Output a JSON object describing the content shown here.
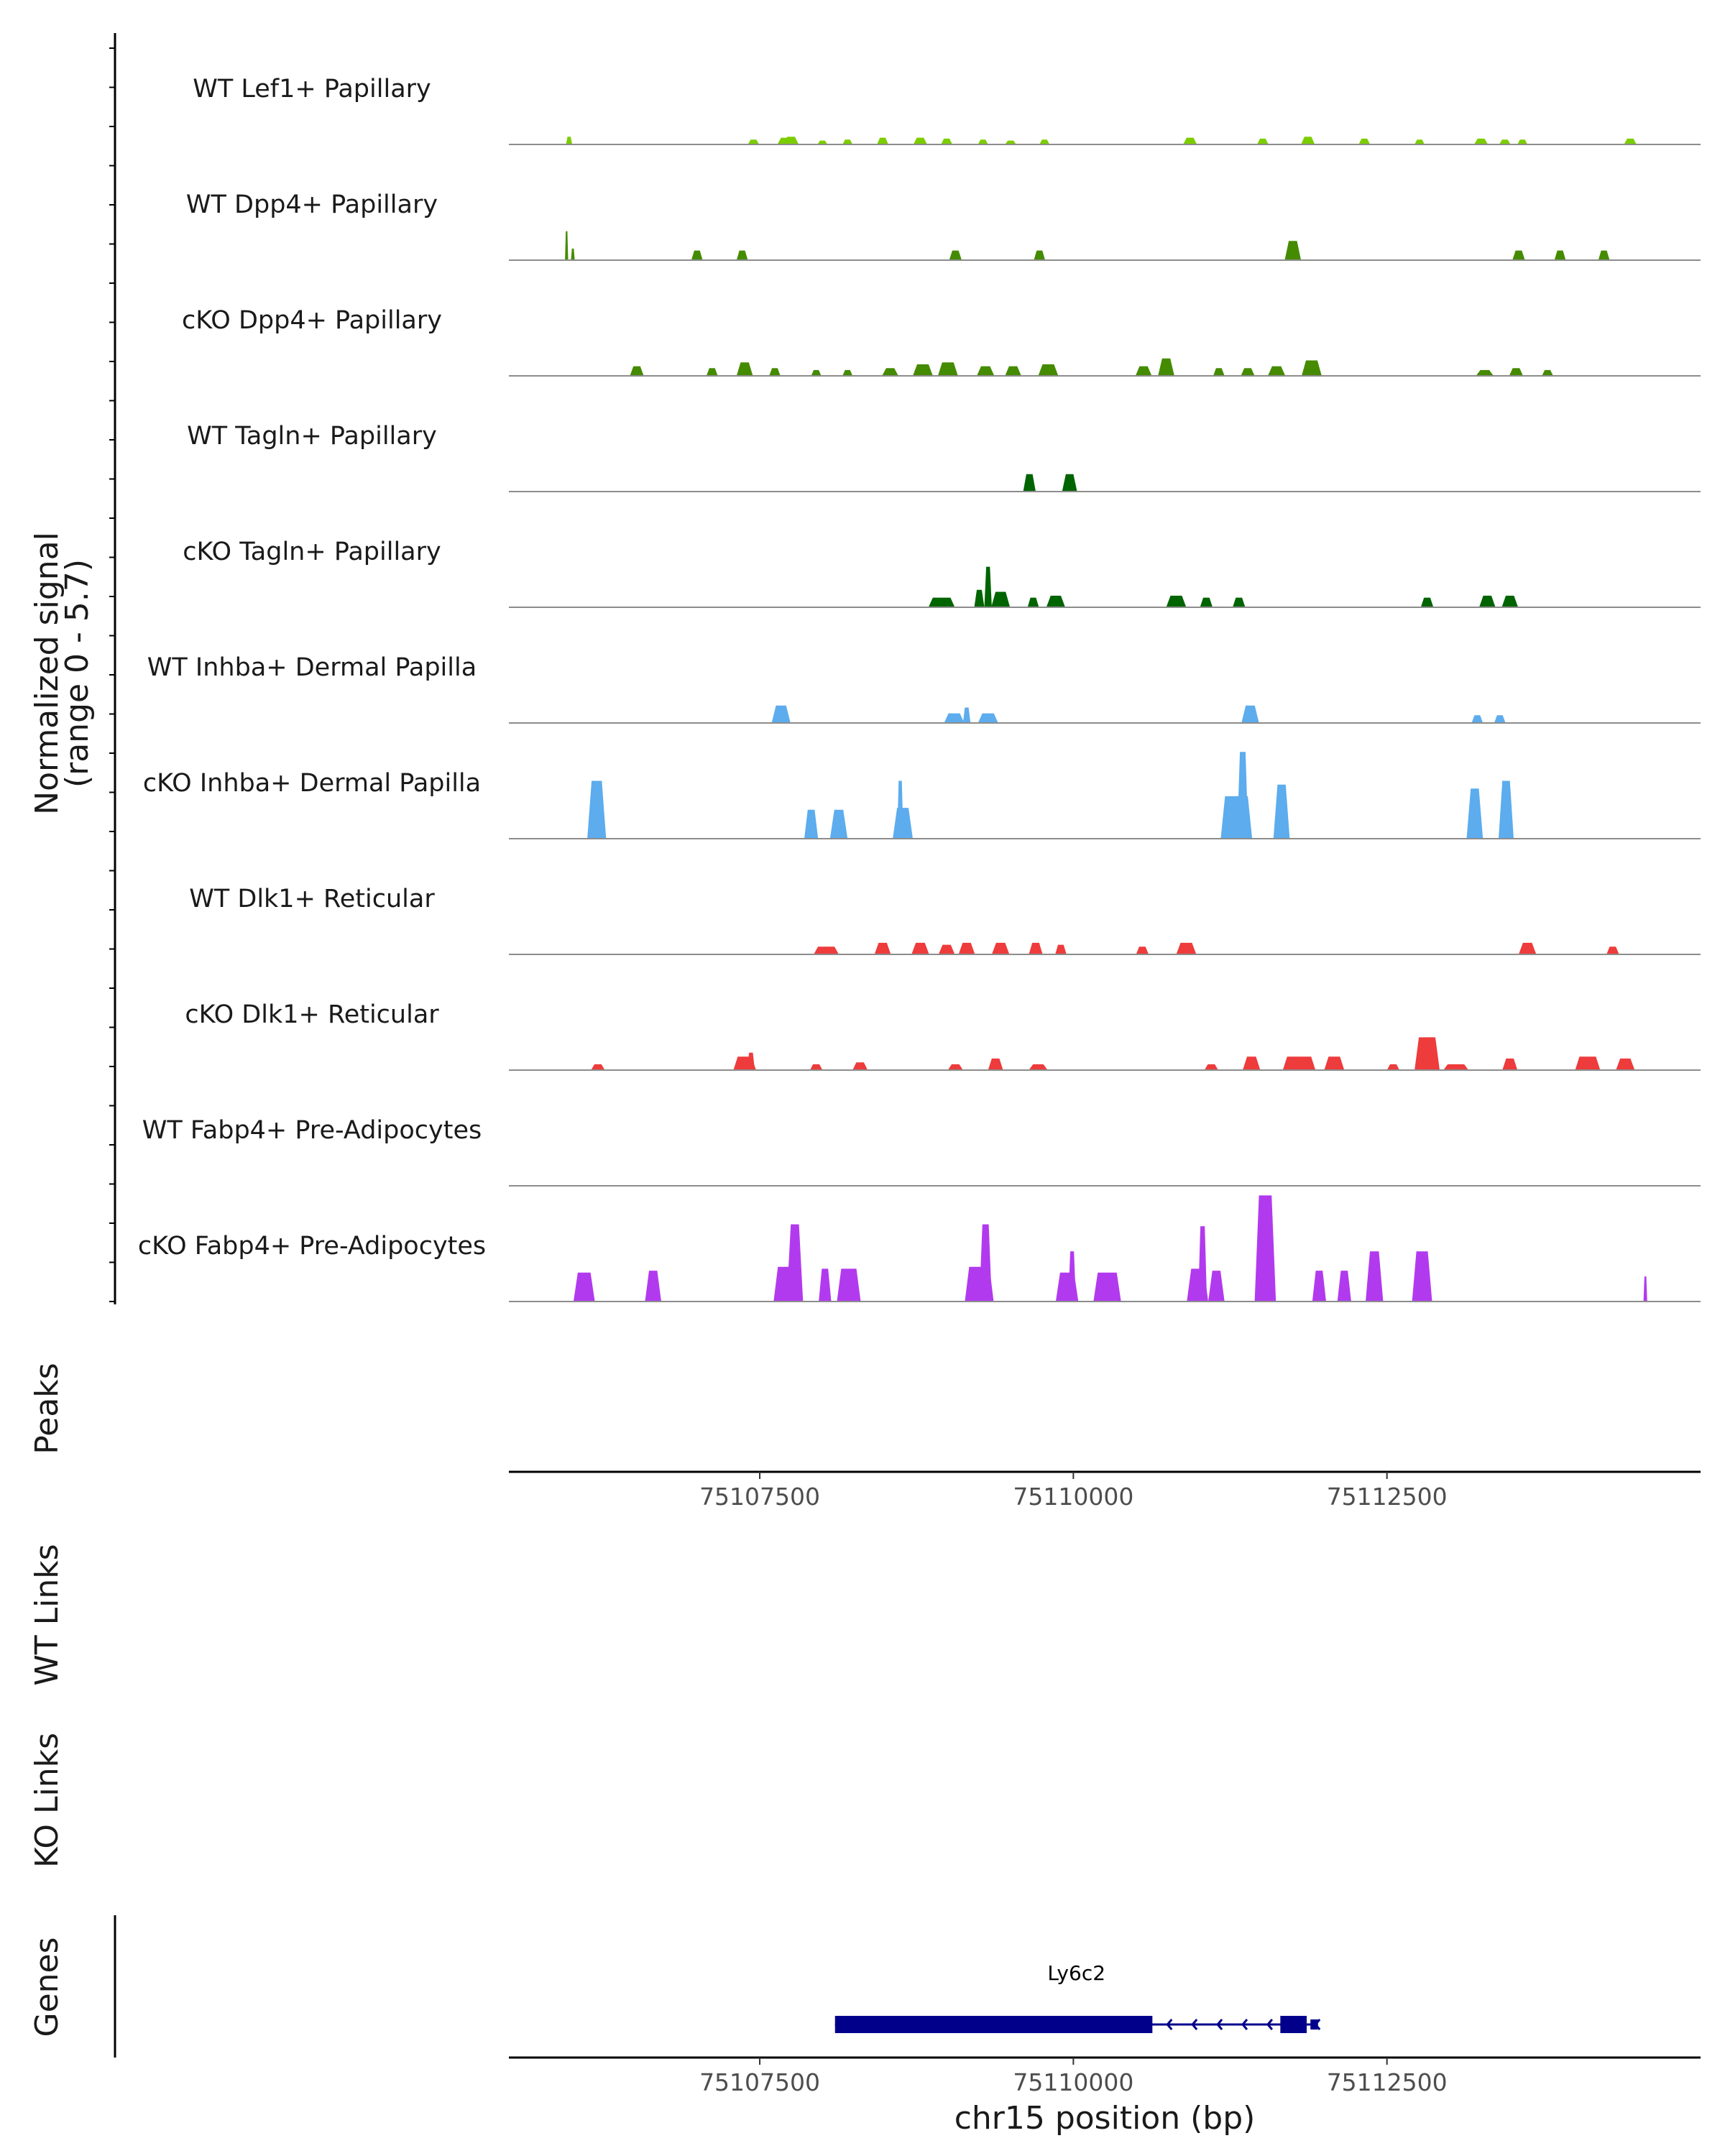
{
  "chart_data": {
    "type": "area",
    "title": "",
    "region": "chr15",
    "xlim": [
      75105500,
      75115000
    ],
    "xticks": [
      75107500,
      75110000,
      75112500
    ],
    "xtick_labels": [
      "75107500",
      "75110000",
      "75112500"
    ],
    "xlabel": "chr15 position (bp)",
    "ylabel": "Normalized signal",
    "ylabel_sub": "(range 0 - 5.7)",
    "ylim": [
      0,
      5.7
    ],
    "series": [
      {
        "name": "WT Lef1+ Papillary",
        "color": "#7CCD00",
        "peaks": [
          [
            75105980,
            50,
            0.4
          ],
          [
            75107450,
            90,
            0.25
          ],
          [
            75107700,
            120,
            0.35
          ],
          [
            75107750,
            120,
            0.4
          ],
          [
            75108000,
            80,
            0.2
          ],
          [
            75108200,
            80,
            0.25
          ],
          [
            75108480,
            90,
            0.35
          ],
          [
            75108780,
            110,
            0.35
          ],
          [
            75108990,
            90,
            0.3
          ],
          [
            75109280,
            80,
            0.25
          ],
          [
            75109500,
            90,
            0.2
          ],
          [
            75109770,
            80,
            0.25
          ],
          [
            75110930,
            110,
            0.35
          ],
          [
            75111510,
            90,
            0.3
          ],
          [
            75111870,
            110,
            0.4
          ],
          [
            75112320,
            90,
            0.3
          ],
          [
            75112760,
            80,
            0.25
          ],
          [
            75113250,
            110,
            0.3
          ],
          [
            75113440,
            90,
            0.25
          ],
          [
            75113580,
            80,
            0.25
          ],
          [
            75114440,
            100,
            0.3
          ]
        ]
      },
      {
        "name": "WT Dpp4+ Papillary",
        "color": "#458B00",
        "peaks": [
          [
            75105960,
            25,
            1.5
          ],
          [
            75106010,
            30,
            0.6
          ],
          [
            75107000,
            90,
            0.5
          ],
          [
            75107360,
            90,
            0.5
          ],
          [
            75109060,
            100,
            0.5
          ],
          [
            75109730,
            90,
            0.5
          ],
          [
            75111750,
            130,
            1.0
          ],
          [
            75113550,
            100,
            0.5
          ],
          [
            75113880,
            90,
            0.5
          ],
          [
            75114230,
            90,
            0.5
          ]
        ]
      },
      {
        "name": "cKO Dpp4+ Papillary",
        "color": "#458B00",
        "peaks": [
          [
            75106520,
            110,
            0.5
          ],
          [
            75107120,
            90,
            0.4
          ],
          [
            75107380,
            130,
            0.7
          ],
          [
            75107620,
            90,
            0.4
          ],
          [
            75107950,
            80,
            0.3
          ],
          [
            75108200,
            80,
            0.3
          ],
          [
            75108540,
            130,
            0.4
          ],
          [
            75108800,
            160,
            0.6
          ],
          [
            75109000,
            160,
            0.7
          ],
          [
            75109300,
            140,
            0.5
          ],
          [
            75109520,
            130,
            0.5
          ],
          [
            75109800,
            160,
            0.6
          ],
          [
            75110560,
            130,
            0.5
          ],
          [
            75110740,
            130,
            0.9
          ],
          [
            75111160,
            90,
            0.4
          ],
          [
            75111390,
            110,
            0.4
          ],
          [
            75111620,
            140,
            0.5
          ],
          [
            75111900,
            160,
            0.8
          ],
          [
            75113280,
            140,
            0.3
          ],
          [
            75113530,
            110,
            0.4
          ],
          [
            75113780,
            90,
            0.3
          ]
        ]
      },
      {
        "name": "WT Tagln+ Papillary",
        "color": "#006400",
        "peaks": [
          [
            75109650,
            100,
            0.9
          ],
          [
            75109970,
            120,
            0.9
          ]
        ]
      },
      {
        "name": "cKO Tagln+ Papillary",
        "color": "#006400",
        "peaks": [
          [
            75108950,
            210,
            0.5
          ],
          [
            75109250,
            80,
            0.9
          ],
          [
            75109320,
            60,
            2.1
          ],
          [
            75109420,
            150,
            0.8
          ],
          [
            75109680,
            90,
            0.5
          ],
          [
            75109860,
            150,
            0.6
          ],
          [
            75110820,
            160,
            0.6
          ],
          [
            75111060,
            100,
            0.5
          ],
          [
            75111320,
            100,
            0.5
          ],
          [
            75112820,
            100,
            0.5
          ],
          [
            75113300,
            130,
            0.6
          ],
          [
            75113480,
            130,
            0.6
          ]
        ]
      },
      {
        "name": "WT Inhba+ Dermal Papilla",
        "color": "#5CACEE",
        "peaks": [
          [
            75107670,
            150,
            0.9
          ],
          [
            75109050,
            160,
            0.5
          ],
          [
            75109150,
            60,
            0.8
          ],
          [
            75109320,
            160,
            0.5
          ],
          [
            75111410,
            140,
            0.9
          ],
          [
            75113220,
            90,
            0.4
          ],
          [
            75113400,
            90,
            0.4
          ]
        ]
      },
      {
        "name": "cKO Inhba+ Dermal Papilla",
        "color": "#5CACEE",
        "peaks": [
          [
            75106200,
            150,
            3.0
          ],
          [
            75107910,
            110,
            1.5
          ],
          [
            75108130,
            140,
            1.5
          ],
          [
            75108640,
            160,
            1.6
          ],
          [
            75108620,
            50,
            3.0
          ],
          [
            75111300,
            250,
            2.2
          ],
          [
            75111350,
            90,
            4.5
          ],
          [
            75111660,
            130,
            2.8
          ],
          [
            75113200,
            130,
            2.6
          ],
          [
            75113450,
            120,
            3.0
          ]
        ]
      },
      {
        "name": "WT Dlk1+ Reticular",
        "color": "#EE3B3B",
        "peaks": [
          [
            75108030,
            200,
            0.4
          ],
          [
            75108480,
            130,
            0.6
          ],
          [
            75108780,
            140,
            0.6
          ],
          [
            75108990,
            130,
            0.5
          ],
          [
            75109150,
            130,
            0.6
          ],
          [
            75109420,
            140,
            0.6
          ],
          [
            75109700,
            110,
            0.6
          ],
          [
            75109900,
            90,
            0.5
          ],
          [
            75110550,
            100,
            0.4
          ],
          [
            75110900,
            160,
            0.6
          ],
          [
            75113620,
            140,
            0.6
          ],
          [
            75114300,
            100,
            0.4
          ]
        ]
      },
      {
        "name": "cKO Dlk1+ Reticular",
        "color": "#EE3B3B",
        "peaks": [
          [
            75106210,
            110,
            0.3
          ],
          [
            75107380,
            180,
            0.7
          ],
          [
            75107430,
            60,
            0.9
          ],
          [
            75107950,
            100,
            0.3
          ],
          [
            75108300,
            120,
            0.4
          ],
          [
            75109060,
            120,
            0.3
          ],
          [
            75109380,
            120,
            0.6
          ],
          [
            75109720,
            150,
            0.3
          ],
          [
            75111100,
            110,
            0.3
          ],
          [
            75111420,
            140,
            0.7
          ],
          [
            75111800,
            260,
            0.7
          ],
          [
            75112080,
            160,
            0.7
          ],
          [
            75112550,
            100,
            0.3
          ],
          [
            75112820,
            200,
            1.7
          ],
          [
            75113050,
            200,
            0.3
          ],
          [
            75113480,
            120,
            0.6
          ],
          [
            75114100,
            200,
            0.7
          ],
          [
            75114400,
            150,
            0.6
          ]
        ]
      },
      {
        "name": "WT Fabp4+ Pre-Adipocytes",
        "color": "#B23AEE",
        "peaks": []
      },
      {
        "name": "cKO Fabp4+ Pre-Adipocytes",
        "color": "#B23AEE",
        "peaks": [
          [
            75106100,
            170,
            1.5
          ],
          [
            75106650,
            130,
            1.6
          ],
          [
            75107710,
            200,
            1.8
          ],
          [
            75107780,
            130,
            4.0
          ],
          [
            75108020,
            100,
            1.7
          ],
          [
            75108210,
            190,
            1.7
          ],
          [
            75109250,
            230,
            1.8
          ],
          [
            75109300,
            100,
            4.0
          ],
          [
            75109950,
            180,
            1.5
          ],
          [
            75109990,
            60,
            2.6
          ],
          [
            75110270,
            220,
            1.5
          ],
          [
            75110990,
            170,
            1.7
          ],
          [
            75111030,
            70,
            3.9
          ],
          [
            75111140,
            130,
            1.6
          ],
          [
            75111530,
            170,
            5.5
          ],
          [
            75111960,
            110,
            1.6
          ],
          [
            75112160,
            110,
            1.6
          ],
          [
            75112400,
            140,
            2.6
          ],
          [
            75112780,
            160,
            2.6
          ],
          [
            75114560,
            30,
            1.3
          ]
        ]
      }
    ],
    "annotation_tracks": [
      "Peaks",
      "WT Links",
      "KO Links"
    ],
    "genes": [
      {
        "name": "Ly6c2",
        "start": 75108100,
        "end": 75111950,
        "strand": "-",
        "color": "#00008B"
      }
    ]
  }
}
